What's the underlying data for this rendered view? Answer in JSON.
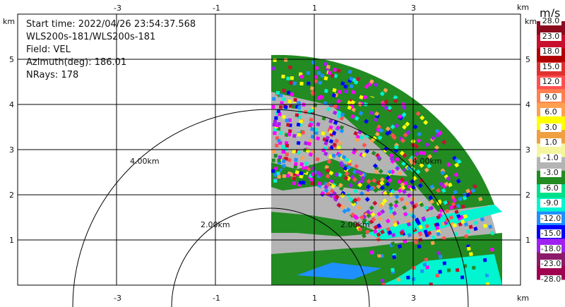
{
  "info": {
    "start_time": "Start time: 2022/04/26 23:54:37.568",
    "site": "WLS200s-181/WLS200s-181",
    "field": "Field: VEL",
    "azimuth": "Azimuth(deg): 186.01",
    "nrays": "NRays: 178"
  },
  "axes": {
    "unit": "km",
    "x_ticks": [
      "-3",
      "-1",
      "1",
      "3"
    ],
    "y_ticks": [
      "5",
      "4",
      "3",
      "2",
      "1"
    ]
  },
  "range_rings": [
    "4.00km",
    "2.00km",
    "2.00km",
    "4.00km"
  ],
  "colorbar": {
    "unit": "m/s",
    "labels": [
      "28.0",
      "23.0",
      "18.0",
      "15.0",
      "12.0",
      "9.0",
      "6.0",
      "3.0",
      "1.0",
      "-1.0",
      "-3.0",
      "-6.0",
      "-9.0",
      "-12.0",
      "-15.0",
      "-18.0",
      "-23.0",
      "-28.0"
    ],
    "colors": [
      "#8b0a1e",
      "#c8102e",
      "#b00000",
      "#e03030",
      "#ff5050",
      "#ff7f50",
      "#ffa050",
      "#ffff00",
      "#f0a040",
      "#f5f5a0",
      "#b4b4b4",
      "#228b22",
      "#00e08a",
      "#00f5d0",
      "#1e90ff",
      "#0000ff",
      "#a020f0",
      "#8b1a6b",
      "#a00050"
    ]
  }
}
